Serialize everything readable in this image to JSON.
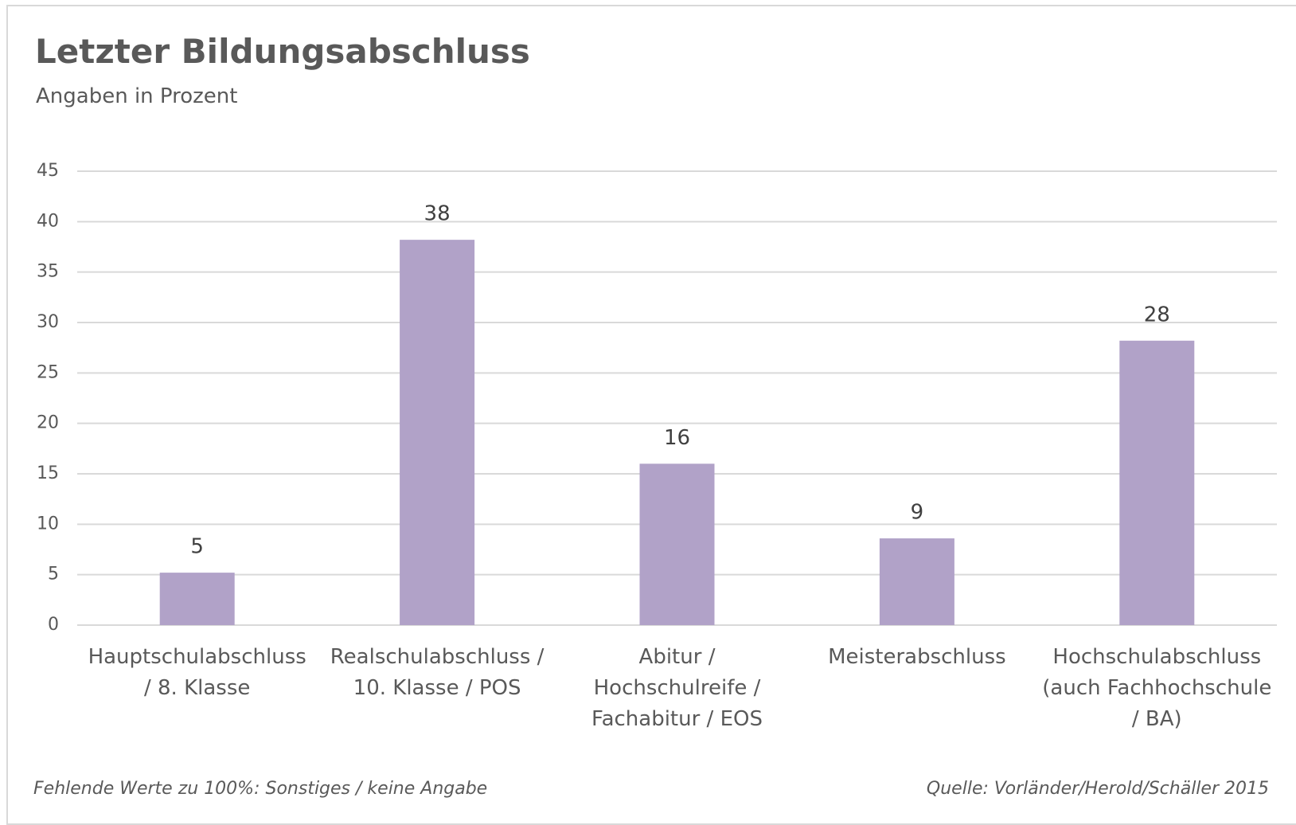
{
  "chart_data": {
    "type": "bar",
    "title": "Letzter Bildungsabschluss",
    "subtitle": "Angaben in Prozent",
    "categories": [
      "Hauptschulabschluss\n/ 8. Klasse",
      "Realschulabschluss /\n10. Klasse / POS",
      "Abitur /\nHochschulreife /\nFachabitur / EOS",
      "Meisterabschluss",
      "Hochschulabschluss\n(auch Fachhochschule\n/ BA)"
    ],
    "values": [
      5.2,
      38.2,
      16,
      8.6,
      28.2
    ],
    "value_labels": [
      "5",
      "38",
      "16",
      "9",
      "28"
    ],
    "color": "#b1a2c8",
    "ylim": [
      0,
      45
    ],
    "yticks": [
      0,
      5,
      10,
      15,
      20,
      25,
      30,
      35,
      40,
      45
    ],
    "grid": true,
    "footnote": "Fehlende Werte zu 100%: Sonstiges / keine Angabe",
    "source": "Quelle: Vorländer/Herold/Schäller 2015"
  }
}
